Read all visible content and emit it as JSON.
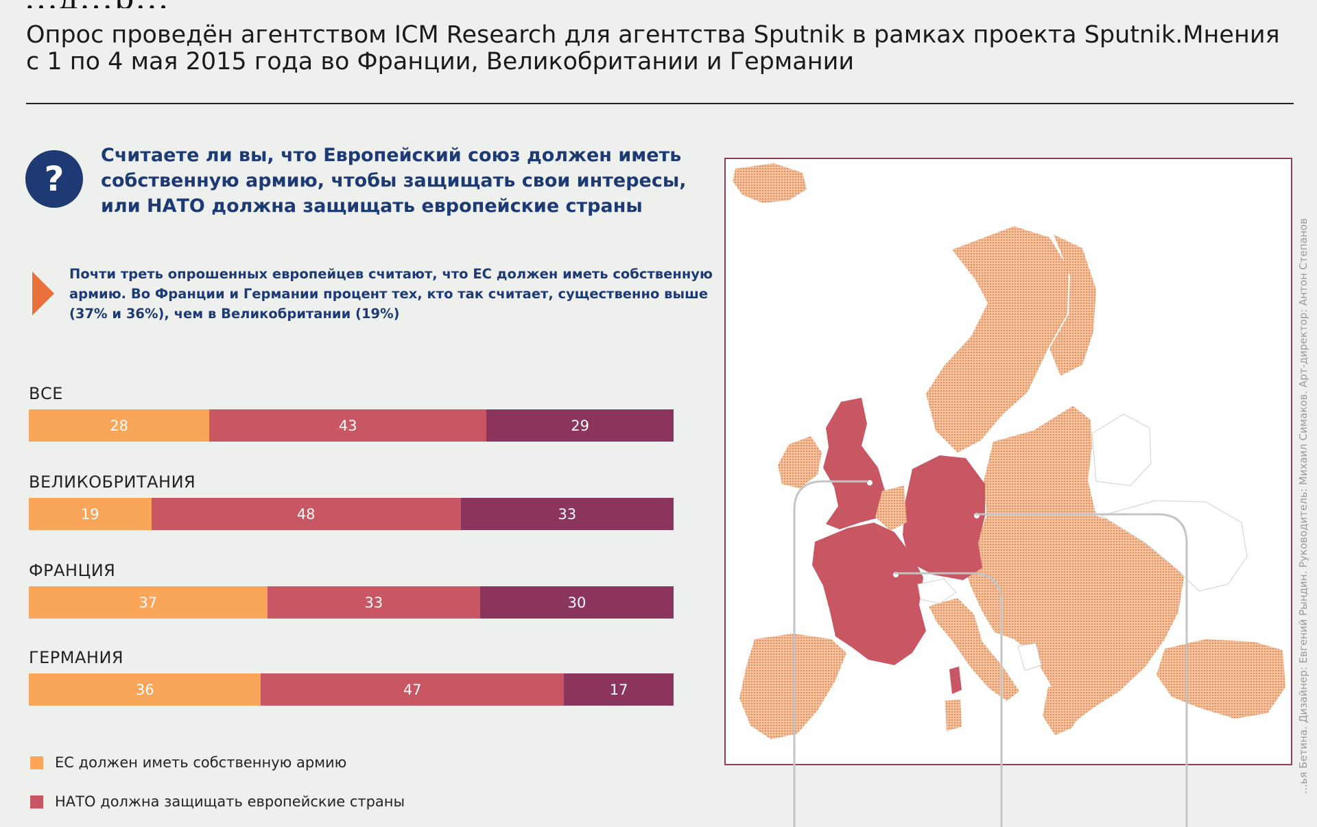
{
  "header": {
    "title_fragment": "...д...р...",
    "subtitle_lines": [
      "Опрос проведён агентством ICM Research для агентства Sputnik в рамках проекта Sputnik.Мнения",
      "с 1 по 4 мая 2015 года во Франции, Великобритании и Германии"
    ]
  },
  "question": {
    "icon": "question-mark-icon",
    "icon_glyph": "?",
    "lines": [
      "Считаете ли вы, что Европейский союз должен иметь",
      "собственную армию, чтобы защищать свои интересы,",
      "или НАТО должна защищать европейские страны"
    ]
  },
  "note": {
    "icon": "arrow-right-icon",
    "lines": [
      "Почти треть опрошенных европейцев считают, что ЕС должен иметь собственную",
      "армию. Во Франции и Германии процент тех, кто так считает, существенно выше",
      "(37% и 36%), чем в Великобритании (19%)"
    ]
  },
  "chart_data": {
    "type": "bar",
    "orientation": "horizontal",
    "stacked": true,
    "categories": [
      "ВСЕ",
      "ВЕЛИКОБРИТАНИЯ",
      "ФРАНЦИЯ",
      "ГЕРМАНИЯ"
    ],
    "series": [
      {
        "name": "ЕС должен иметь собственную армию",
        "color": "#f9a65a",
        "values": [
          28,
          19,
          37,
          36
        ]
      },
      {
        "name": "НАТО должна защищать европейские страны",
        "color": "#c95663",
        "values": [
          43,
          48,
          33,
          47
        ]
      },
      {
        "name": "",
        "color": "#8b345c",
        "values": [
          29,
          33,
          30,
          17
        ]
      }
    ],
    "legend": [
      "ЕС должен иметь собственную армию",
      "НАТО должна защищать европейские страны"
    ],
    "legend_position": "bottom-left"
  },
  "map": {
    "highlight_color": "#c95663",
    "other_color": "#eca87c",
    "leader_color": "#c4c4c4"
  },
  "credits": "...ья Бетина. Дизайнер: Евгений Рындин. Руководитель: Михаил Симаков. Арт-директор: Антон Степанов"
}
